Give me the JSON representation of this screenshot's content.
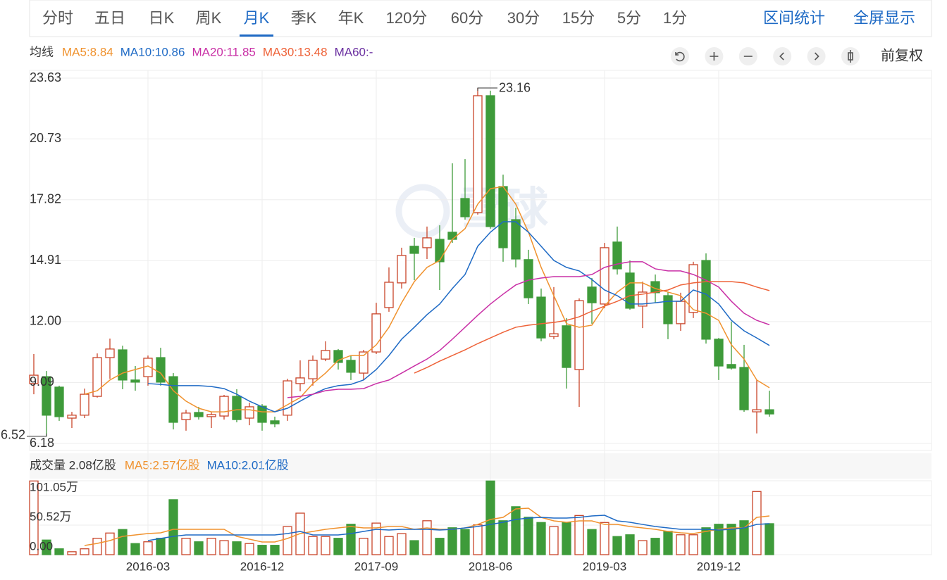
{
  "toolbar": {
    "tabs": [
      "分时",
      "五日",
      "日K",
      "周K",
      "月K",
      "季K",
      "年K",
      "120分",
      "60分",
      "30分",
      "15分",
      "5分",
      "1分"
    ],
    "active": "月K",
    "right": [
      "区间统计",
      "全屏显示"
    ]
  },
  "adjust": "前复权",
  "watermark": "雪球",
  "chart_data": [
    {
      "type": "candlestick",
      "legend_title": "均线",
      "legend": [
        {
          "label": "MA5:8.84",
          "color": "#f0922e"
        },
        {
          "label": "MA10:10.86",
          "color": "#1e6ac5"
        },
        {
          "label": "MA20:11.85",
          "color": "#c930a6"
        },
        {
          "label": "MA30:13.48",
          "color": "#ee6238"
        },
        {
          "label": "MA60:-",
          "color": "#6a2fa0"
        }
      ],
      "up_color": "#c9452a",
      "down_color": "#3e9b3a",
      "grid": true,
      "ylim": [
        6.18,
        23.63
      ],
      "yticks": [
        6.18,
        9.09,
        {
          "value": 12,
          "label": "12.00"
        },
        14.91,
        17.82,
        20.73,
        23.63
      ],
      "categories": [
        null,
        null,
        null,
        null,
        null,
        null,
        null,
        null,
        null,
        "2016-03",
        null,
        null,
        null,
        null,
        null,
        null,
        null,
        null,
        "2016-12",
        null,
        null,
        null,
        null,
        null,
        null,
        null,
        null,
        "2017-09",
        null,
        null,
        null,
        null,
        null,
        null,
        null,
        null,
        "2018-06",
        null,
        null,
        null,
        null,
        null,
        null,
        null,
        null,
        "2019-03",
        null,
        null,
        null,
        null,
        null,
        null,
        null,
        null,
        "2019-12",
        null,
        null,
        null,
        null
      ],
      "candles": [
        {
          "open": 9.04,
          "high": 10.45,
          "low": 8.53,
          "close": 9.44
        },
        {
          "open": 9.37,
          "high": 9.64,
          "low": 6.52,
          "close": 7.53
        },
        {
          "open": 8.87,
          "high": 8.94,
          "low": 7.26,
          "close": 7.46
        },
        {
          "open": 7.39,
          "high": 7.69,
          "low": 6.92,
          "close": 7.53
        },
        {
          "open": 7.53,
          "high": 8.8,
          "low": 7.39,
          "close": 8.53
        },
        {
          "open": 8.43,
          "high": 10.48,
          "low": 8.37,
          "close": 10.28
        },
        {
          "open": 10.28,
          "high": 11.19,
          "low": 9.27,
          "close": 10.69
        },
        {
          "open": 10.65,
          "high": 10.85,
          "low": 8.77,
          "close": 9.21
        },
        {
          "open": 9.21,
          "high": 9.88,
          "low": 8.7,
          "close": 9.11
        },
        {
          "open": 9.37,
          "high": 10.38,
          "low": 8.94,
          "close": 10.25
        },
        {
          "open": 10.28,
          "high": 10.75,
          "low": 8.94,
          "close": 9.11
        },
        {
          "open": 9.37,
          "high": 9.54,
          "low": 6.85,
          "close": 7.19
        },
        {
          "open": 7.32,
          "high": 7.79,
          "low": 6.79,
          "close": 7.63
        },
        {
          "open": 7.66,
          "high": 7.93,
          "low": 7.32,
          "close": 7.46
        },
        {
          "open": 7.46,
          "high": 7.66,
          "low": 6.92,
          "close": 7.56
        },
        {
          "open": 7.49,
          "high": 8.5,
          "low": 7.32,
          "close": 8.43
        },
        {
          "open": 8.43,
          "high": 8.77,
          "low": 7.19,
          "close": 7.32
        },
        {
          "open": 7.39,
          "high": 8.13,
          "low": 7.05,
          "close": 7.93
        },
        {
          "open": 7.96,
          "high": 8.06,
          "low": 6.79,
          "close": 7.19
        },
        {
          "open": 7.26,
          "high": 7.46,
          "low": 6.95,
          "close": 7.12
        },
        {
          "open": 7.53,
          "high": 9.27,
          "low": 7.26,
          "close": 9.17
        },
        {
          "open": 9.04,
          "high": 10.15,
          "low": 8.67,
          "close": 9.31
        },
        {
          "open": 9.27,
          "high": 10.38,
          "low": 8.94,
          "close": 10.15
        },
        {
          "open": 10.21,
          "high": 11.06,
          "low": 10.11,
          "close": 10.62
        },
        {
          "open": 10.62,
          "high": 10.69,
          "low": 9.71,
          "close": 10.05
        },
        {
          "open": 10.15,
          "high": 10.38,
          "low": 9.21,
          "close": 9.58
        },
        {
          "open": 9.54,
          "high": 10.65,
          "low": 9.21,
          "close": 10.55
        },
        {
          "open": 10.55,
          "high": 12.9,
          "low": 10.45,
          "close": 12.37
        },
        {
          "open": 12.67,
          "high": 14.59,
          "low": 12.47,
          "close": 13.88
        },
        {
          "open": 13.85,
          "high": 15.53,
          "low": 13.58,
          "close": 15.16
        },
        {
          "open": 15.6,
          "high": 16.0,
          "low": 13.98,
          "close": 15.26
        },
        {
          "open": 15.53,
          "high": 16.54,
          "low": 14.99,
          "close": 16.0
        },
        {
          "open": 15.93,
          "high": 16.6,
          "low": 13.51,
          "close": 14.86
        },
        {
          "open": 16.27,
          "high": 19.56,
          "low": 15.76,
          "close": 15.93
        },
        {
          "open": 17.88,
          "high": 19.76,
          "low": 16.87,
          "close": 17.01
        },
        {
          "open": 17.21,
          "high": 23.16,
          "low": 17.11,
          "close": 22.79
        },
        {
          "open": 22.79,
          "high": 23.03,
          "low": 16.44,
          "close": 16.54
        },
        {
          "open": 18.45,
          "high": 19.02,
          "low": 14.86,
          "close": 15.53
        },
        {
          "open": 16.87,
          "high": 17.44,
          "low": 14.59,
          "close": 14.99
        },
        {
          "open": 14.96,
          "high": 15.43,
          "low": 12.84,
          "close": 13.14
        },
        {
          "open": 13.17,
          "high": 13.58,
          "low": 11.06,
          "close": 11.22
        },
        {
          "open": 11.29,
          "high": 13.65,
          "low": 11.16,
          "close": 11.42
        },
        {
          "open": 11.8,
          "high": 12.17,
          "low": 8.8,
          "close": 9.81
        },
        {
          "open": 9.71,
          "high": 13.11,
          "low": 7.93,
          "close": 13.0
        },
        {
          "open": 13.65,
          "high": 14.08,
          "low": 11.9,
          "close": 12.9
        },
        {
          "open": 12.84,
          "high": 15.76,
          "low": 12.64,
          "close": 15.53
        },
        {
          "open": 15.8,
          "high": 16.54,
          "low": 14.25,
          "close": 14.52
        },
        {
          "open": 14.32,
          "high": 14.92,
          "low": 12.57,
          "close": 12.64
        },
        {
          "open": 12.74,
          "high": 13.91,
          "low": 11.69,
          "close": 13.41
        },
        {
          "open": 13.91,
          "high": 14.25,
          "low": 12.9,
          "close": 13.38
        },
        {
          "open": 13.24,
          "high": 13.41,
          "low": 11.16,
          "close": 11.9
        },
        {
          "open": 11.9,
          "high": 13.38,
          "low": 11.56,
          "close": 12.97
        },
        {
          "open": 12.44,
          "high": 14.86,
          "low": 12.17,
          "close": 14.72
        },
        {
          "open": 14.92,
          "high": 15.26,
          "low": 10.95,
          "close": 11.16
        },
        {
          "open": 11.16,
          "high": 11.22,
          "low": 9.21,
          "close": 9.88
        },
        {
          "open": 9.95,
          "high": 12.0,
          "low": 9.71,
          "close": 9.78
        },
        {
          "open": 9.81,
          "high": 10.89,
          "low": 7.69,
          "close": 7.79
        },
        {
          "open": 7.69,
          "high": 9.21,
          "low": 6.66,
          "close": 7.79
        },
        {
          "open": 7.79,
          "high": 8.7,
          "low": 7.46,
          "close": 7.59
        }
      ],
      "series": [
        {
          "name": "MA5",
          "color": "#f0922e",
          "values": [
            null,
            null,
            null,
            null,
            8.53,
            8.7,
            9.21,
            9.54,
            9.71,
            9.88,
            9.54,
            8.7,
            8.2,
            7.86,
            7.69,
            7.69,
            7.79,
            7.79,
            7.69,
            7.69,
            8.03,
            8.37,
            9.04,
            9.54,
            10.15,
            10.38,
            10.38,
            10.89,
            11.73,
            12.9,
            13.91,
            14.59,
            14.92,
            15.93,
            16.44,
            17.61,
            18.35,
            18.45,
            17.61,
            16.27,
            14.59,
            13.24,
            11.9,
            11.73,
            11.83,
            12.74,
            13.41,
            13.85,
            13.85,
            13.58,
            13.41,
            13.24,
            12.57,
            12.4,
            12.06,
            10.89,
            10.21,
            9.21,
            8.84
          ]
        },
        {
          "name": "MA10",
          "color": "#1e6ac5",
          "values": [
            null,
            null,
            null,
            null,
            null,
            null,
            null,
            null,
            null,
            9.04,
            9.0,
            8.94,
            8.94,
            8.94,
            8.9,
            8.8,
            8.53,
            8.2,
            7.93,
            7.69,
            7.86,
            8.2,
            8.53,
            8.8,
            8.94,
            9.0,
            9.21,
            9.71,
            10.38,
            11.16,
            11.73,
            12.33,
            12.84,
            13.58,
            14.25,
            15.6,
            16.27,
            16.77,
            16.77,
            16.27,
            15.6,
            14.92,
            14.59,
            14.42,
            14.01,
            13.51,
            13.24,
            12.84,
            12.84,
            12.9,
            12.97,
            12.97,
            13.51,
            13.31,
            12.84,
            12.06,
            11.56,
            11.22,
            10.86
          ]
        },
        {
          "name": "MA20",
          "color": "#c930a6",
          "values": [
            null,
            null,
            null,
            null,
            null,
            null,
            null,
            null,
            null,
            null,
            null,
            null,
            null,
            null,
            null,
            null,
            null,
            null,
            null,
            null,
            8.37,
            8.43,
            8.53,
            8.7,
            8.77,
            8.77,
            8.8,
            9.04,
            9.21,
            9.54,
            9.88,
            10.21,
            10.62,
            11.16,
            11.73,
            12.3,
            12.84,
            13.31,
            13.75,
            13.98,
            14.08,
            14.15,
            14.15,
            14.15,
            14.25,
            14.59,
            14.75,
            14.86,
            14.86,
            14.52,
            14.42,
            14.42,
            14.25,
            13.98,
            13.65,
            12.97,
            12.4,
            12.06,
            11.85
          ]
        },
        {
          "name": "MA30",
          "color": "#ee6238",
          "values": [
            null,
            null,
            null,
            null,
            null,
            null,
            null,
            null,
            null,
            null,
            null,
            null,
            null,
            null,
            null,
            null,
            null,
            null,
            null,
            null,
            null,
            null,
            null,
            null,
            null,
            null,
            null,
            null,
            null,
            null,
            9.54,
            9.81,
            10.11,
            10.38,
            10.65,
            10.95,
            11.22,
            11.49,
            11.73,
            11.83,
            11.9,
            11.96,
            12.06,
            12.23,
            12.5,
            12.74,
            12.97,
            13.24,
            13.31,
            13.41,
            13.51,
            13.75,
            13.85,
            13.91,
            13.91,
            13.91,
            13.85,
            13.65,
            13.48
          ]
        }
      ]
    },
    {
      "type": "bar",
      "title": "成交量 2.08亿股",
      "legend": [
        {
          "label": "MA5:2.57亿股",
          "color": "#f0922e"
        },
        {
          "label": "MA10:2.01亿股",
          "color": "#1e6ac5"
        }
      ],
      "ylim": [
        0,
        126.4
      ],
      "yticks": [
        {
          "value": 0,
          "label": "0.00"
        },
        {
          "value": 50.52,
          "label": "50.52万"
        },
        {
          "value": 101.05,
          "label": "101.05万"
        }
      ],
      "grid": true,
      "values": [
        126,
        25,
        10,
        5,
        10,
        28,
        37,
        43,
        19,
        22,
        28,
        94,
        28,
        22,
        28,
        24,
        22,
        19,
        16,
        16,
        48,
        71,
        31,
        31,
        28,
        52,
        28,
        54,
        31,
        36,
        24,
        58,
        28,
        46,
        43,
        51,
        126,
        58,
        82,
        64,
        55,
        48,
        55,
        67,
        43,
        55,
        31,
        34,
        24,
        28,
        40,
        34,
        34,
        46,
        52,
        52,
        58,
        108,
        53
      ],
      "series": [
        {
          "name": "MA5",
          "color": "#f0922e",
          "values": [
            null,
            null,
            null,
            null,
            15.6,
            19.3,
            24.1,
            31.3,
            33.7,
            36.1,
            37.3,
            43.3,
            43.3,
            43.3,
            43.3,
            43.3,
            31.3,
            26.5,
            21.7,
            21.7,
            27.7,
            36.1,
            39.7,
            43.3,
            45.7,
            48.1,
            45.7,
            45.7,
            48.1,
            48.1,
            43.3,
            45.7,
            43.3,
            43.3,
            45.7,
            51.7,
            60.2,
            63.8,
            78.2,
            79.4,
            63.8,
            57.8,
            55.4,
            57.8,
            57.8,
            51.7,
            51.7,
            48.1,
            45.7,
            43.3,
            39.7,
            37.3,
            36.1,
            39.7,
            43.3,
            45.7,
            45.7,
            63.8,
            66.2
          ]
        },
        {
          "name": "MA10",
          "color": "#1e6ac5",
          "values": [
            null,
            null,
            null,
            null,
            null,
            null,
            null,
            null,
            null,
            24.1,
            27.7,
            31.3,
            33.7,
            33.7,
            33.7,
            33.7,
            33.7,
            33.7,
            33.7,
            33.7,
            36.1,
            39.7,
            33.7,
            33.7,
            33.7,
            36.1,
            39.7,
            43.3,
            42.1,
            43.3,
            43.3,
            43.3,
            42.1,
            43.3,
            45.7,
            48.1,
            51.7,
            55.4,
            60.2,
            62.6,
            63.8,
            62.6,
            62.6,
            63.8,
            66.2,
            67.4,
            57.8,
            55.4,
            51.7,
            48.1,
            45.7,
            43.3,
            43.3,
            43.3,
            42.1,
            43.3,
            45.7,
            51.7,
            52.9
          ]
        }
      ]
    }
  ]
}
